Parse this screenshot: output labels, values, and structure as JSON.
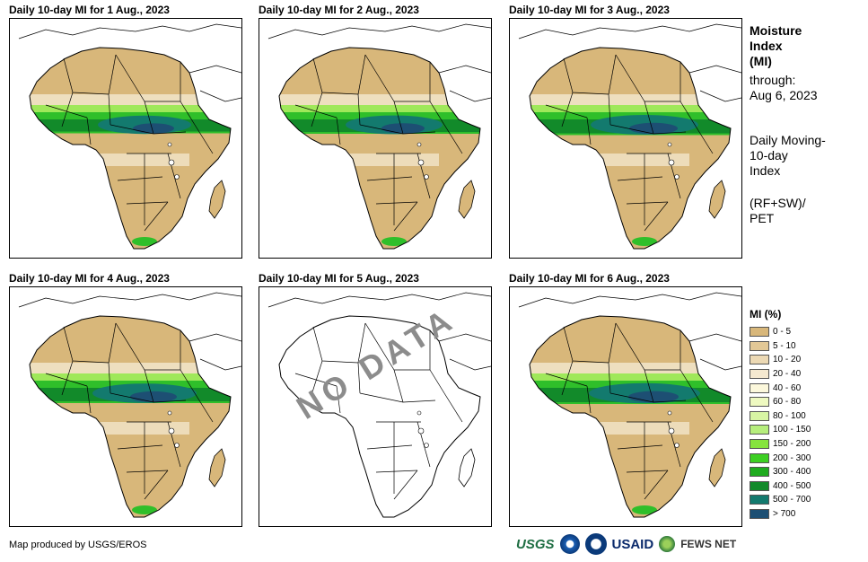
{
  "panels": [
    {
      "title": "Daily 10-day MI for 1 Aug., 2023",
      "has_data": true,
      "wet_fraction": 0.55
    },
    {
      "title": "Daily 10-day MI for 2 Aug., 2023",
      "has_data": true,
      "wet_fraction": 0.6
    },
    {
      "title": "Daily 10-day MI for 3 Aug., 2023",
      "has_data": true,
      "wet_fraction": 0.75
    },
    {
      "title": "Daily 10-day MI for 4 Aug., 2023",
      "has_data": true,
      "wet_fraction": 0.7
    },
    {
      "title": "Daily 10-day MI for 5 Aug., 2023",
      "has_data": false,
      "overlay_text": "NO DATA"
    },
    {
      "title": "Daily 10-day MI for 6 Aug., 2023",
      "has_data": true,
      "wet_fraction": 0.8
    }
  ],
  "sidebar": {
    "title_lines": [
      "Moisture",
      "Index",
      "(MI)"
    ],
    "through_label": "through:",
    "through_date": "Aug 6, 2023",
    "desc_lines": [
      "Daily Moving-",
      "10-day",
      "Index"
    ],
    "formula_lines": [
      "(RF+SW)/",
      "PET"
    ]
  },
  "legend": {
    "title": "MI (%)",
    "items": [
      {
        "label": "0 - 5",
        "color": "#d8b77a"
      },
      {
        "label": "5 - 10",
        "color": "#e2c896"
      },
      {
        "label": "10 - 20",
        "color": "#ecd9b4"
      },
      {
        "label": "20 - 40",
        "color": "#f5e9d0"
      },
      {
        "label": "40 - 60",
        "color": "#fcf8dc"
      },
      {
        "label": "60 - 80",
        "color": "#eef9c0"
      },
      {
        "label": "80 - 100",
        "color": "#d8f5a4"
      },
      {
        "label": "100 - 150",
        "color": "#b6ee7c"
      },
      {
        "label": "150 - 200",
        "color": "#86e43e"
      },
      {
        "label": "200 - 300",
        "color": "#3ccf22"
      },
      {
        "label": "300 - 400",
        "color": "#1eab1e"
      },
      {
        "label": "400 - 500",
        "color": "#128a2a"
      },
      {
        "label": "500 - 700",
        "color": "#137a6e"
      },
      {
        "label": "> 700",
        "color": "#1d4f73"
      }
    ]
  },
  "footer": {
    "credit": "Map produced by USGS/EROS"
  },
  "logos": {
    "usgs": "USGS",
    "usaid": "USAID",
    "fews": "FEWS NET"
  },
  "colors": {
    "land": "#d8b77a",
    "light": "#f1e3c6",
    "green_light": "#9fe85a",
    "green": "#2fbf2a",
    "green_dark": "#128a2a",
    "teal": "#137a6e",
    "navy": "#1d4f73"
  }
}
